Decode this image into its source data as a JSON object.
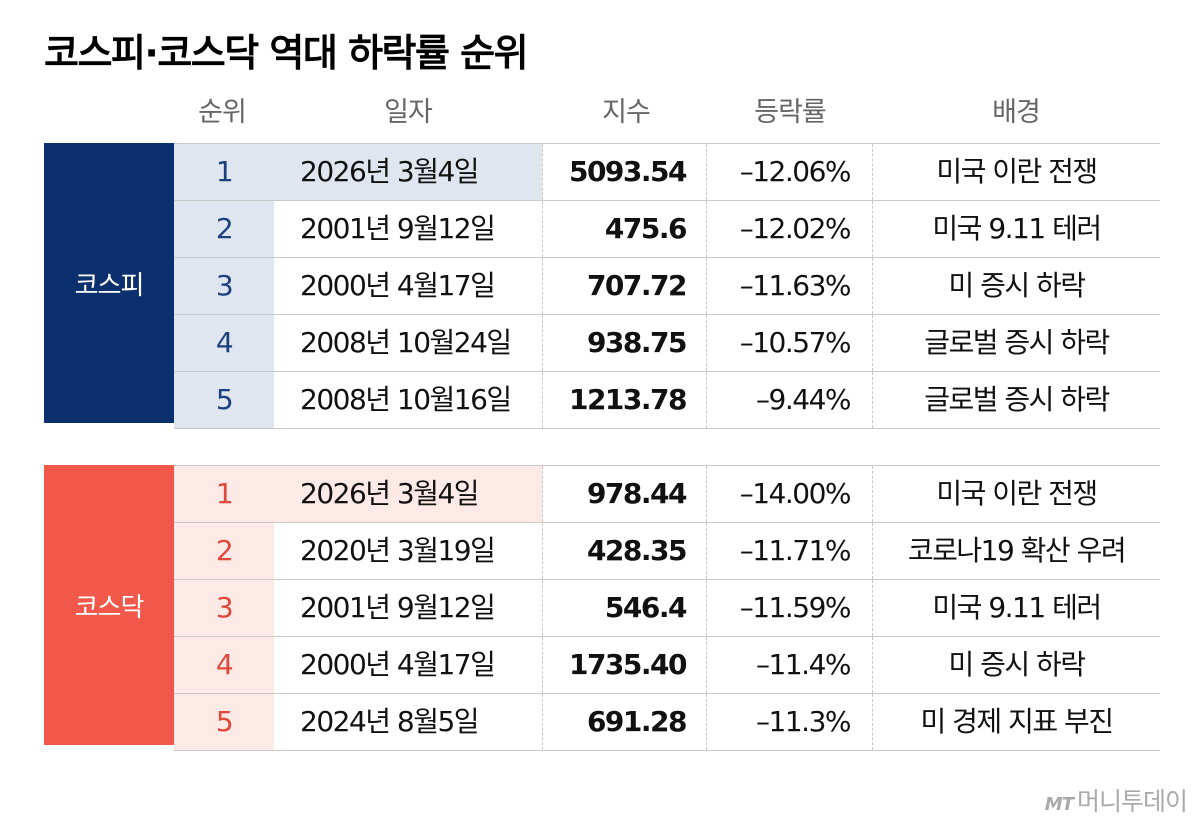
{
  "title": "코스피·코스닥 역대 하락률 순위",
  "columns": [
    "순위",
    "일자",
    "지수",
    "등락률",
    "배경"
  ],
  "colors": {
    "kospi": "#0c2f6e",
    "kosdaq": "#f2584a"
  },
  "chart_data": {
    "type": "table",
    "title": "코스피·코스닥 역대 하락률 순위",
    "columns": [
      "순위",
      "일자",
      "지수",
      "등락률",
      "배경"
    ],
    "groups": [
      {
        "name": "코스피",
        "rows": [
          {
            "rank": "1",
            "date": "2026년 3월4일",
            "index": "5093.54",
            "change": "–12.06%",
            "cause": "미국 이란 전쟁"
          },
          {
            "rank": "2",
            "date": "2001년 9월12일",
            "index": "475.6",
            "change": "–12.02%",
            "cause": "미국 9.11 테러"
          },
          {
            "rank": "3",
            "date": "2000년 4월17일",
            "index": "707.72",
            "change": "–11.63%",
            "cause": "미 증시 하락"
          },
          {
            "rank": "4",
            "date": "2008년 10월24일",
            "index": "938.75",
            "change": "–10.57%",
            "cause": "글로벌 증시 하락"
          },
          {
            "rank": "5",
            "date": "2008년 10월16일",
            "index": "1213.78",
            "change": "–9.44%",
            "cause": "글로벌 증시 하락"
          }
        ]
      },
      {
        "name": "코스닥",
        "rows": [
          {
            "rank": "1",
            "date": "2026년 3월4일",
            "index": "978.44",
            "change": "–14.00%",
            "cause": "미국 이란 전쟁"
          },
          {
            "rank": "2",
            "date": "2020년 3월19일",
            "index": "428.35",
            "change": "–11.71%",
            "cause": "코로나19 확산 우려"
          },
          {
            "rank": "3",
            "date": "2001년 9월12일",
            "index": "546.4",
            "change": "–11.59%",
            "cause": "미국 9.11 테러"
          },
          {
            "rank": "4",
            "date": "2000년 4월17일",
            "index": "1735.40",
            "change": "–11.4%",
            "cause": "미 증시 하락"
          },
          {
            "rank": "5",
            "date": "2024년 8월5일",
            "index": "691.28",
            "change": "–11.3%",
            "cause": "미 경제 지표 부진"
          }
        ]
      }
    ]
  },
  "logo": {
    "mark": "MT",
    "name": "머니투데이"
  }
}
